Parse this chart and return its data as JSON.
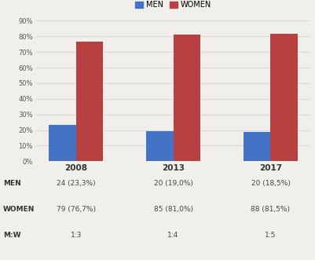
{
  "years": [
    "2008",
    "2013",
    "2017"
  ],
  "men_values": [
    23.3,
    19.0,
    18.5
  ],
  "women_values": [
    76.7,
    81.0,
    81.5
  ],
  "men_color": "#4472c4",
  "women_color": "#b94040",
  "bar_width": 0.28,
  "ylim": [
    0,
    90
  ],
  "yticks": [
    0,
    10,
    20,
    30,
    40,
    50,
    60,
    70,
    80,
    90
  ],
  "ytick_labels": [
    "0%",
    "10%",
    "20%",
    "30%",
    "40%",
    "50%",
    "60%",
    "70%",
    "80%",
    "90%"
  ],
  "legend_labels": [
    "MEN",
    "WOMEN"
  ],
  "table_rows": [
    [
      "MEN",
      "24 (23,3%)",
      "20 (19,0%)",
      "20 (18,5%)"
    ],
    [
      "WOMEN",
      "79 (76,7%)",
      "85 (81,0%)",
      "88 (81,5%)"
    ],
    [
      "M:W",
      "1:3",
      "1:4",
      "1:5"
    ]
  ],
  "background_color": "#f0efeb",
  "grid_color": "#d8d8d8",
  "text_color": "#555555"
}
